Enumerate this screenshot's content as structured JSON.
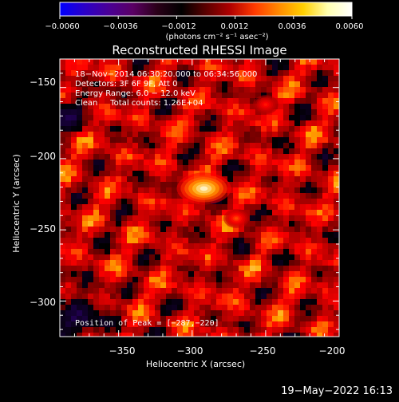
{
  "chart_data": {
    "type": "heatmap",
    "title": "Reconstructed RHESSI Image",
    "xlabel": "Heliocentric X (arcsec)",
    "ylabel": "Heliocentric Y (arcsec)",
    "xlim": [
      -390,
      -200
    ],
    "ylim": [
      -325,
      -130
    ],
    "x_ticks": [
      -350,
      -300,
      -250,
      -200
    ],
    "x_tick_labels": [
      "−350",
      "−300",
      "−250",
      "−200"
    ],
    "y_ticks": [
      -150,
      -200,
      -250,
      -300
    ],
    "y_tick_labels": [
      "−150",
      "−200",
      "−250",
      "−300"
    ],
    "colorbar": {
      "range": [
        -0.006,
        0.006
      ],
      "ticks": [
        -0.006,
        -0.0036,
        -0.0012,
        0.0012,
        0.0036,
        0.006
      ],
      "tick_labels": [
        "−0.0060",
        "−0.0036",
        "−0.0012",
        "0.0012",
        "0.0036",
        "0.0060"
      ],
      "unit": "(photons cm⁻² s⁻¹ asec⁻²)",
      "colors": [
        "#0000ff",
        "#2a00c8",
        "#4a0096",
        "#5a0064",
        "#2a0018",
        "#000000",
        "#5a0000",
        "#b00000",
        "#ff3a00",
        "#ff8a00",
        "#ffd000",
        "#ffffb0",
        "#ffffff"
      ]
    },
    "annotations": [
      "18−Nov−2014 06:30:20.000 to 06:34:56.000",
      "Detectors: 3F 6F 9F, Att 0",
      "Energy Range: 6.0 − 12.0 keV",
      "Clean     Total counts: 1.26E+04"
    ],
    "peak_label": "Position of Peak = [−287,−220]",
    "peak": [
      -287,
      -220
    ],
    "sources": [
      {
        "x": -292,
        "y": -221,
        "value": 0.006
      },
      {
        "x": -270,
        "y": -242,
        "value": 0.0036
      },
      {
        "x": -250,
        "y": -162,
        "value": 0.003
      }
    ]
  },
  "footer": {
    "timestamp": "19−May−2022 16:13"
  }
}
